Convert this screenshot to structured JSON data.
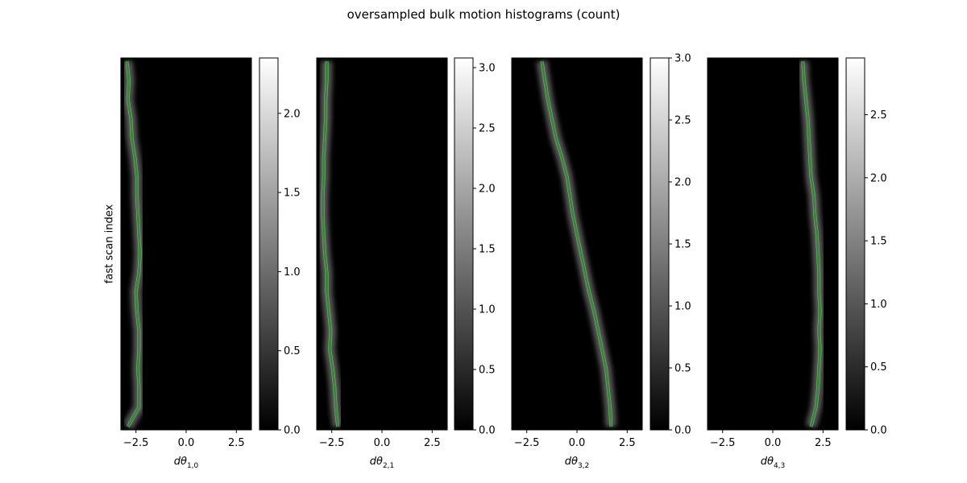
{
  "figure": {
    "title": "oversampled bulk motion histograms (count)",
    "ylabel": "fast scan index"
  },
  "colors": {
    "background": "#000000",
    "trace": "#2e8b2e",
    "colormap": "gray"
  },
  "chart_data": [
    {
      "type": "heatmap",
      "xlabel": "dθ_{1,0}",
      "xlabel_main": "dθ",
      "xlabel_sub": "1,0",
      "xlim": [
        -3.25,
        3.25
      ],
      "xticks": [
        -2.5,
        0.0,
        2.5
      ],
      "xtick_labels": [
        "−2.5",
        "0.0",
        "2.5"
      ],
      "colorbar": {
        "min": 0.0,
        "max": 2.35,
        "ticks": [
          0.0,
          0.5,
          1.0,
          1.5,
          2.0
        ],
        "tick_labels": [
          "0.0",
          "0.5",
          "1.0",
          "1.5",
          "2.0"
        ]
      },
      "trace_x": [
        -2.95,
        -2.85,
        -2.9,
        -2.75,
        -2.7,
        -2.55,
        -2.45,
        -2.45,
        -2.4,
        -2.35,
        -2.3,
        -2.35,
        -2.5,
        -2.45,
        -2.35,
        -2.35,
        -2.4,
        -2.35,
        -2.35,
        -2.9
      ]
    },
    {
      "type": "heatmap",
      "xlabel": "dθ_{2,1}",
      "xlabel_main": "dθ",
      "xlabel_sub": "2,1",
      "xlim": [
        -3.25,
        3.25
      ],
      "xticks": [
        -2.5,
        0.0,
        2.5
      ],
      "xtick_labels": [
        "−2.5",
        "0.0",
        "2.5"
      ],
      "colorbar": {
        "min": 0.0,
        "max": 3.08,
        "ticks": [
          0.0,
          0.5,
          1.0,
          1.5,
          2.0,
          2.5,
          3.0
        ],
        "tick_labels": [
          "0.0",
          "0.5",
          "1.0",
          "1.5",
          "2.0",
          "2.5",
          "3.0"
        ]
      },
      "trace_x": [
        -2.75,
        -2.75,
        -2.8,
        -2.8,
        -2.85,
        -2.9,
        -2.9,
        -2.95,
        -2.95,
        -2.9,
        -2.85,
        -2.75,
        -2.75,
        -2.65,
        -2.55,
        -2.6,
        -2.45,
        -2.35,
        -2.3,
        -2.2
      ]
    },
    {
      "type": "heatmap",
      "xlabel": "dθ_{3,2}",
      "xlabel_main": "dθ",
      "xlabel_sub": "3,2",
      "xlim": [
        -3.25,
        3.25
      ],
      "xticks": [
        -2.5,
        0.0,
        2.5
      ],
      "xtick_labels": [
        "−2.5",
        "0.0",
        "2.5"
      ],
      "colorbar": {
        "min": 0.0,
        "max": 3.0,
        "ticks": [
          0.0,
          0.5,
          1.0,
          1.5,
          2.0,
          2.5,
          3.0
        ],
        "tick_labels": [
          "0.0",
          "0.5",
          "1.0",
          "1.5",
          "2.0",
          "2.5",
          "3.0"
        ]
      },
      "trace_x": [
        -1.75,
        -1.6,
        -1.45,
        -1.25,
        -1.05,
        -0.75,
        -0.5,
        -0.35,
        -0.2,
        0.0,
        0.2,
        0.4,
        0.6,
        0.85,
        1.05,
        1.25,
        1.45,
        1.55,
        1.65,
        1.7
      ]
    },
    {
      "type": "heatmap",
      "xlabel": "dθ_{4,3}",
      "xlabel_main": "dθ",
      "xlabel_sub": "4,3",
      "xlim": [
        -3.25,
        3.25
      ],
      "xticks": [
        -2.5,
        0.0,
        2.5
      ],
      "xtick_labels": [
        "−2.5",
        "0.0",
        "2.5"
      ],
      "colorbar": {
        "min": 0.0,
        "max": 2.95,
        "ticks": [
          0.0,
          0.5,
          1.0,
          1.5,
          2.0,
          2.5
        ],
        "tick_labels": [
          "0.0",
          "0.5",
          "1.0",
          "1.5",
          "2.0",
          "2.5"
        ]
      },
      "trace_x": [
        1.5,
        1.55,
        1.65,
        1.75,
        1.8,
        1.85,
        1.9,
        2.05,
        2.1,
        2.2,
        2.25,
        2.3,
        2.3,
        2.35,
        2.3,
        2.35,
        2.3,
        2.25,
        2.15,
        1.9
      ]
    }
  ]
}
